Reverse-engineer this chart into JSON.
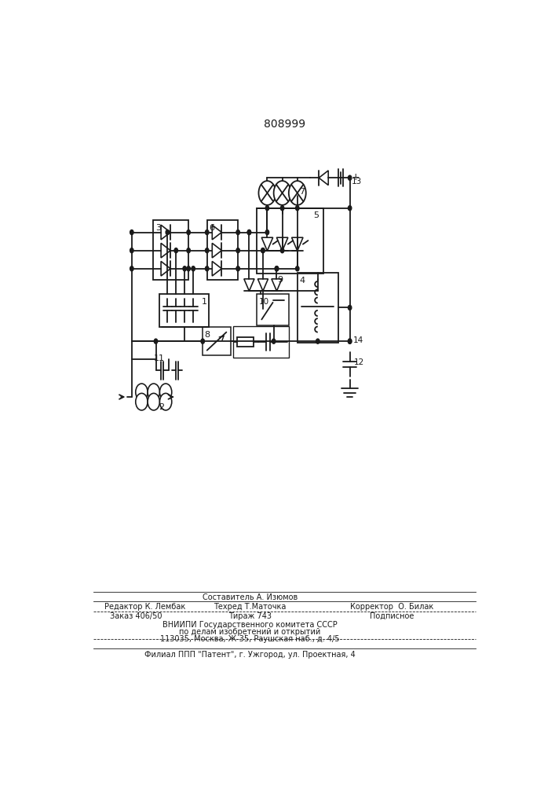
{
  "title": "808999",
  "bg_color": "#ffffff",
  "line_color": "#1a1a1a",
  "lw": 1.3,
  "footer": {
    "line1_left": "Редактор К. Лембак",
    "line1_center_top": "Составитель А. Изюмов",
    "line1_center_bot": "Техред Т.Маточка",
    "line1_right": "Корректор  О. Билак",
    "line2_left": "Заказ 406/50",
    "line2_center": "Тираж 743",
    "line2_right": "Подписное",
    "line3": "ВНИИПИ Государственного комитета СССР",
    "line4": "по делам изобретений и открытий",
    "line5": "113035, Москва, Ж-35, Раушская наб., д. 4/5",
    "line6": "Филиал ППП \"Патент\", г. Ужгород, ул. Проектная, 4"
  }
}
